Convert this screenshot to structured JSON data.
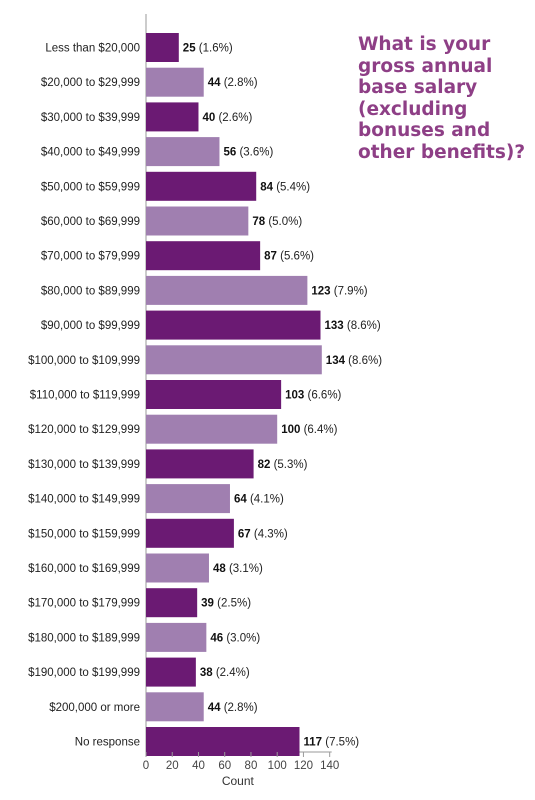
{
  "title_lines": [
    "What is your",
    "gross annual",
    "base salary",
    "(excluding",
    "bonuses and",
    "other benefits)?"
  ],
  "colors": {
    "dark": "#6b1a73",
    "light": "#a07fb0",
    "title": "#8e3f86",
    "axis": "#9a9a9a"
  },
  "chart_data": {
    "type": "bar",
    "orientation": "horizontal",
    "title": "What is your gross annual base salary (excluding bonuses and other benefits)?",
    "xlabel": "Count",
    "ylabel": "",
    "xlim": [
      0,
      140
    ],
    "xticks": [
      "0",
      "20",
      "40",
      "60",
      "80",
      "100",
      "120",
      "140"
    ],
    "grid": false,
    "categories": [
      "Less than $20,000",
      "$20,000 to $29,999",
      "$30,000 to $39,999",
      "$40,000 to $49,999",
      "$50,000 to $59,999",
      "$60,000 to $69,999",
      "$70,000 to $79,999",
      "$80,000 to $89,999",
      "$90,000 to $99,999",
      "$100,000 to $109,999",
      "$110,000 to $119,999",
      "$120,000 to $129,999",
      "$130,000 to $139,999",
      "$140,000 to $149,999",
      "$150,000 to $159,999",
      "$160,000 to $169,999",
      "$170,000 to $179,999",
      "$180,000 to $189,999",
      "$190,000 to $199,999",
      "$200,000 or more",
      "No response"
    ],
    "values": [
      25,
      44,
      40,
      56,
      84,
      78,
      87,
      123,
      133,
      134,
      103,
      100,
      82,
      64,
      67,
      48,
      39,
      46,
      38,
      44,
      117
    ],
    "percent_labels": [
      "(1.6%)",
      "(2.8%)",
      "(2.6%)",
      "(3.6%)",
      "(5.4%)",
      "(5.0%)",
      "(5.6%)",
      "(7.9%)",
      "(8.6%)",
      "(8.6%)",
      "(6.6%)",
      "(6.4%)",
      "(5.3%)",
      "(4.1%)",
      "(4.3%)",
      "(3.1%)",
      "(2.5%)",
      "(3.0%)",
      "(2.4%)",
      "(2.8%)",
      "(7.5%)"
    ]
  }
}
